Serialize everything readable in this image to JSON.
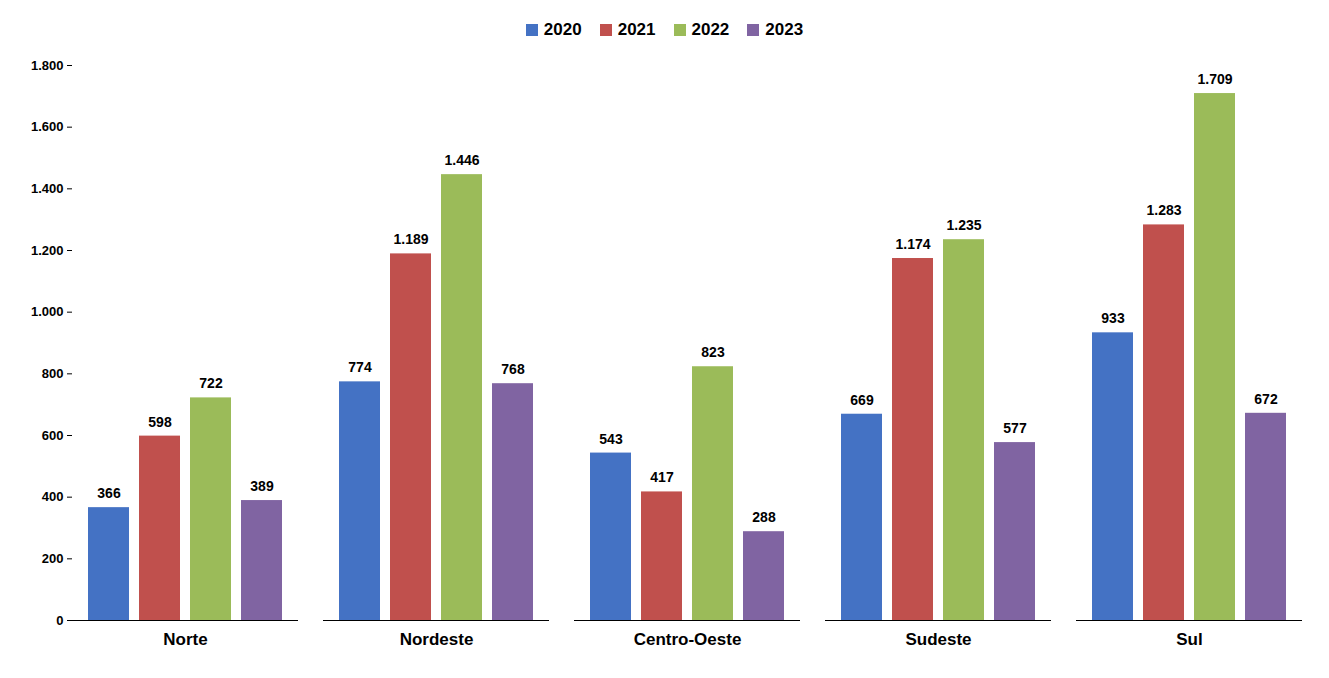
{
  "chart_data": {
    "type": "bar",
    "categories": [
      "Norte",
      "Nordeste",
      "Centro-Oeste",
      "Sudeste",
      "Sul"
    ],
    "series": [
      {
        "name": "2020",
        "color": "#4472c4",
        "values": [
          366,
          774,
          543,
          669,
          933
        ],
        "value_labels": [
          "366",
          "774",
          "543",
          "669",
          "933"
        ]
      },
      {
        "name": "2021",
        "color": "#c0504d",
        "values": [
          598,
          1189,
          417,
          1174,
          1283
        ],
        "value_labels": [
          "598",
          "1.189",
          "417",
          "1.174",
          "1.283"
        ]
      },
      {
        "name": "2022",
        "color": "#9bbb59",
        "values": [
          722,
          1446,
          823,
          1235,
          1709
        ],
        "value_labels": [
          "722",
          "1.446",
          "823",
          "1.235",
          "1.709"
        ]
      },
      {
        "name": "2023",
        "color": "#8064a2",
        "values": [
          389,
          768,
          288,
          577,
          672
        ],
        "value_labels": [
          "389",
          "768",
          "288",
          "577",
          "672"
        ]
      }
    ],
    "ylim": [
      0,
      1800
    ],
    "yticks": [
      0,
      200,
      400,
      600,
      800,
      {
        "value": 1000,
        "label": "1.000"
      },
      {
        "value": 1200,
        "label": "1.200"
      },
      {
        "value": 1400,
        "label": "1.400"
      },
      {
        "value": 1600,
        "label": "1.600"
      },
      {
        "value": 1800,
        "label": "1.800"
      }
    ],
    "grid": false,
    "legend": "top",
    "data_labels": true
  }
}
